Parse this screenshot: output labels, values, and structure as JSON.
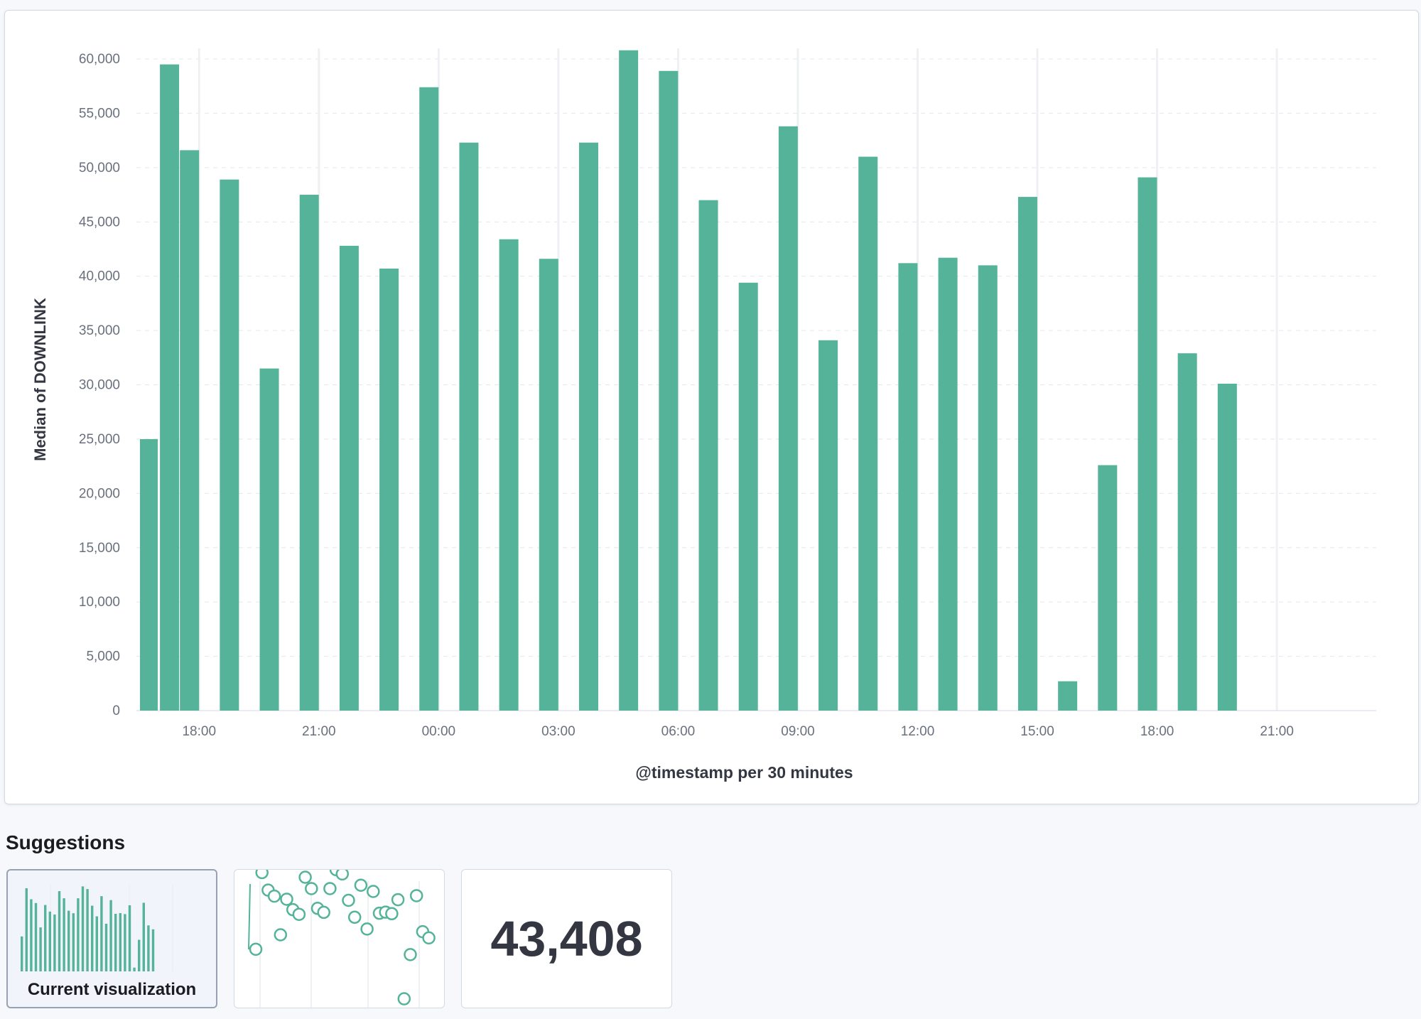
{
  "chart_data": {
    "type": "bar",
    "title": "",
    "xlabel": "@timestamp per 30 minutes",
    "ylabel": "Median of DOWNLINK",
    "ylim": [
      0,
      60000
    ],
    "yticks": [
      0,
      5000,
      10000,
      15000,
      20000,
      25000,
      30000,
      35000,
      40000,
      45000,
      50000,
      55000,
      60000
    ],
    "ytick_labels": [
      "0",
      "5,000",
      "10,000",
      "15,000",
      "20,000",
      "25,000",
      "30,000",
      "35,000",
      "40,000",
      "45,000",
      "50,000",
      "55,000",
      "60,000"
    ],
    "xtick_labels": [
      "18:00",
      "21:00",
      "00:00",
      "03:00",
      "06:00",
      "09:00",
      "12:00",
      "15:00",
      "18:00",
      "21:00"
    ],
    "grid": true,
    "bar_color": "#54b399",
    "categories": [
      "16:30",
      "17:00",
      "17:30",
      "18:30",
      "19:30",
      "20:30",
      "21:30",
      "22:30",
      "23:30",
      "00:30",
      "01:30",
      "02:30",
      "03:30",
      "04:30",
      "05:30",
      "06:30",
      "07:30",
      "08:30",
      "09:30",
      "10:30",
      "11:30",
      "12:30",
      "13:30",
      "14:30",
      "15:30",
      "16:30",
      "17:30",
      "18:30",
      "19:30"
    ],
    "values": [
      25000,
      59500,
      51600,
      48900,
      31500,
      47500,
      42800,
      40700,
      57400,
      52300,
      43400,
      41600,
      52300,
      60800,
      58900,
      47000,
      39400,
      53800,
      34100,
      51000,
      41200,
      41700,
      41000,
      47300,
      2700,
      22600,
      49100,
      32900,
      30100
    ]
  },
  "suggestions": {
    "title": "Suggestions",
    "items": [
      {
        "label": "Current visualization"
      },
      {
        "label": ""
      },
      {
        "label": "",
        "metric": "43,408"
      }
    ]
  }
}
